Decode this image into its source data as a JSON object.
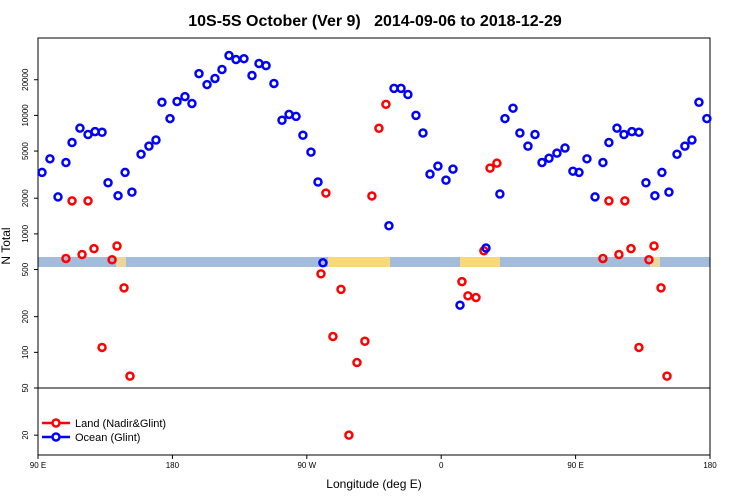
{
  "chart_data": {
    "type": "scatter",
    "title": "10S-5S October (Ver 9)   2014-09-06 to 2018-12-29",
    "x_label": "Longitude (deg E)",
    "y_label": "N Total",
    "log_y": true,
    "xlim": [
      90,
      540
    ],
    "ylim": [
      13.6,
      45000
    ],
    "xticks": [
      {
        "value": 90,
        "label": "90 E"
      },
      180,
      {
        "value": 270,
        "label": "90 W"
      },
      {
        "value": 360,
        "label": "0"
      },
      {
        "value": 450,
        "label": "90 E"
      },
      {
        "value": 540,
        "label": "180"
      }
    ],
    "yticks": [
      20,
      50,
      100,
      200,
      500,
      1000,
      2000,
      5000,
      10000,
      20000
    ],
    "legend": "bottom-left",
    "series": [
      {
        "name": "Land (Nadir&Glint)",
        "color": "#ff0000",
        "x": [
          108.7,
          119.5,
          127.5,
          142.9,
          132.9,
          139.6,
          147.6,
          151.6,
          112.8,
          123.5,
          279.5,
          282.8,
          287.5,
          292.9,
          298.2,
          303.6,
          308.9,
          313.6,
          318.3,
          323.0,
          373.9,
          377.9,
          383.3,
          388.6,
          392.7,
          397.3,
          468.3,
          479.0,
          487.1,
          502.5,
          492.4,
          499.1,
          507.2,
          511.2,
          472.3,
          483.0
        ],
        "values": [
          620,
          670,
          750,
          790,
          110,
          605,
          350,
          63,
          1900,
          1900,
          460,
          2210,
          136,
          340,
          20,
          82,
          124,
          2090,
          7780,
          12400,
          395,
          300,
          290,
          720,
          3590,
          3950,
          620,
          670,
          750,
          790,
          110,
          605,
          350,
          63,
          1900,
          1900
        ]
      },
      {
        "name": "Ocean (Glint)",
        "color": "#0000ff",
        "x": [
          92.7,
          98.0,
          103.4,
          108.7,
          112.8,
          118.1,
          123.5,
          128.2,
          132.9,
          136.9,
          143.6,
          148.3,
          152.9,
          159.0,
          164.3,
          169.0,
          173.0,
          178.4,
          183.1,
          188.4,
          193.1,
          197.8,
          203.2,
          208.5,
          213.2,
          217.9,
          222.6,
          227.9,
          233.3,
          238.0,
          242.7,
          248.0,
          253.4,
          258.1,
          262.8,
          267.4,
          272.8,
          277.5,
          280.8,
          325.0,
          328.4,
          333.1,
          337.7,
          343.1,
          347.8,
          352.5,
          357.8,
          363.2,
          367.9,
          372.6,
          390.0,
          399.3,
          402.7,
          408.1,
          412.7,
          418.1,
          422.8,
          427.5,
          432.2,
          437.5,
          442.9,
          448.2,
          452.3,
          457.6,
          463.0,
          468.3,
          472.3,
          477.7,
          482.4,
          487.7,
          492.4,
          497.1,
          503.1,
          507.8,
          512.5,
          517.9,
          523.2,
          527.9,
          532.6,
          537.9
        ],
        "values": [
          3300,
          4300,
          2050,
          4000,
          5900,
          7800,
          6900,
          7300,
          7200,
          2700,
          2100,
          3300,
          2250,
          4700,
          5500,
          6200,
          12900,
          9400,
          13100,
          14400,
          12600,
          22500,
          18200,
          20500,
          24400,
          32000,
          29600,
          30100,
          21700,
          27400,
          26300,
          18600,
          9100,
          10200,
          9800,
          6800,
          4900,
          2740,
          570,
          1170,
          16900,
          16900,
          15000,
          10000,
          7100,
          3190,
          3730,
          2840,
          3520,
          250,
          760,
          2170,
          9400,
          11500,
          7100,
          5500,
          6900,
          4000,
          4350,
          4800,
          5300,
          3380,
          3300,
          4300,
          2050,
          4000,
          5900,
          7800,
          6900,
          7300,
          7200,
          2700,
          2100,
          3300,
          2250,
          4700,
          5500,
          6200,
          12900,
          9400
        ]
      }
    ]
  }
}
